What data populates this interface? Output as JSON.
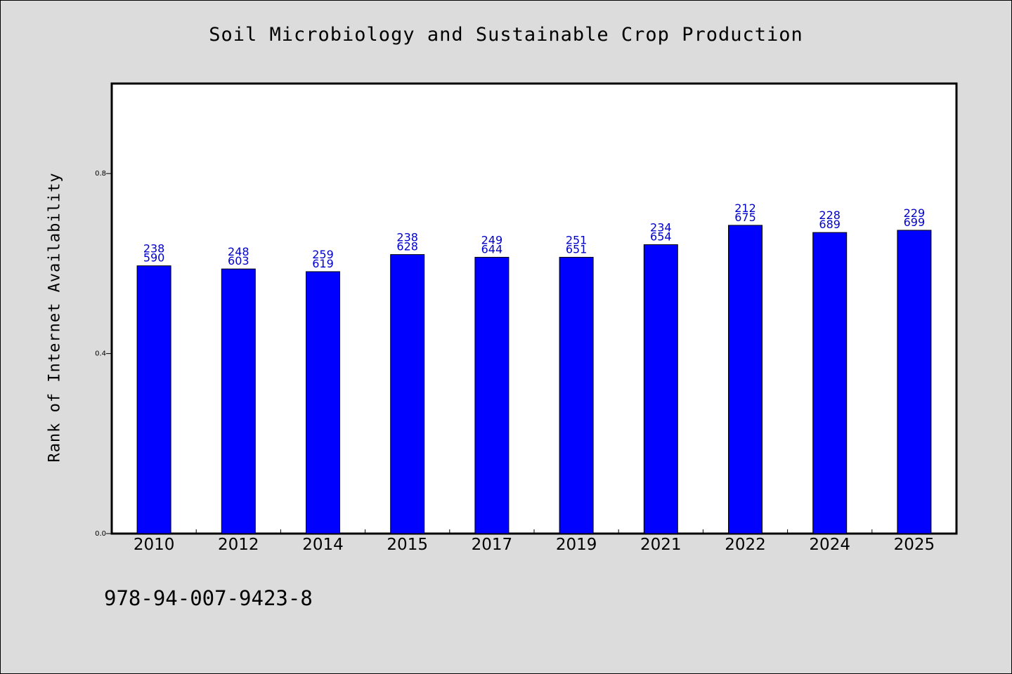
{
  "chart_data": {
    "type": "bar",
    "title": "Soil Microbiology and Sustainable Crop Production",
    "xlabel": "",
    "ylabel": "Rank of Internet Availability",
    "ylim": [
      0,
      1.0
    ],
    "yticks": [
      "0.0",
      "0.4",
      "0.8"
    ],
    "ytick_values": [
      0.0,
      0.4,
      0.8
    ],
    "categories": [
      "2010",
      "2012",
      "2014",
      "2015",
      "2017",
      "2019",
      "2021",
      "2022",
      "2024",
      "2025"
    ],
    "values": [
      0.595,
      0.588,
      0.582,
      0.62,
      0.614,
      0.614,
      0.642,
      0.685,
      0.669,
      0.674
    ],
    "labels_top": [
      "238",
      "248",
      "259",
      "238",
      "249",
      "251",
      "234",
      "212",
      "228",
      "229"
    ],
    "labels_bottom": [
      "590",
      "603",
      "619",
      "628",
      "644",
      "651",
      "654",
      "675",
      "689",
      "699"
    ],
    "bar_color": "#0000ff",
    "label_color": "#0000cc",
    "grid": false,
    "legend": "none"
  },
  "footer": {
    "isbn": "978-94-007-9423-8"
  }
}
